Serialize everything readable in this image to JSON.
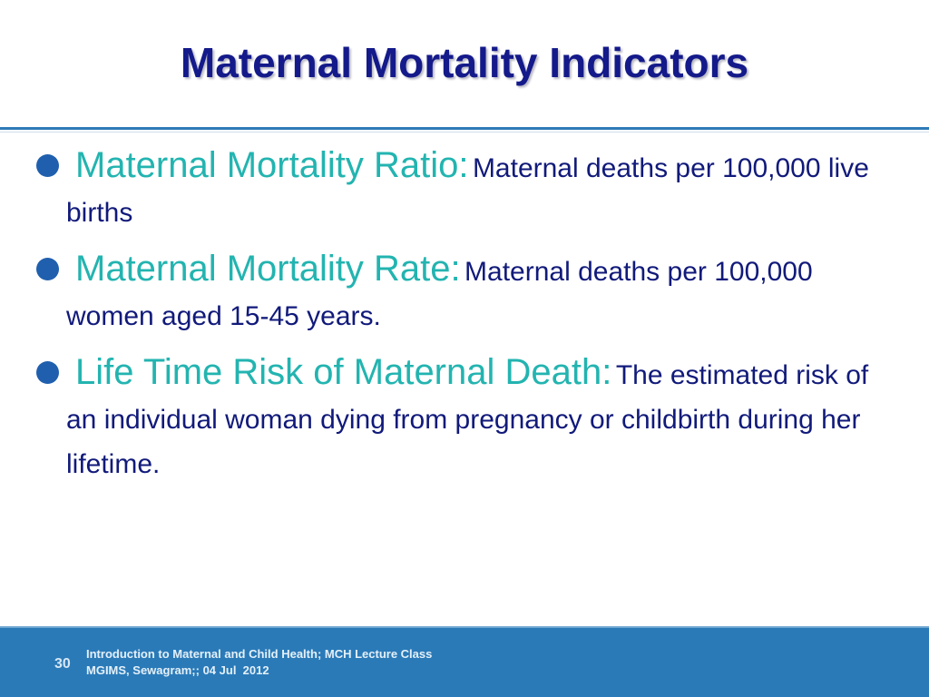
{
  "slide": {
    "title": "Maternal Mortality Indicators"
  },
  "bullets": [
    {
      "term": "Maternal Mortality Ratio:",
      "definition": "Maternal deaths per 100,000 live births"
    },
    {
      "term": "Maternal Mortality Rate:",
      "definition": "Maternal deaths per 100,000 women aged 15-45 years."
    },
    {
      "term": "Life Time Risk of Maternal Death:",
      "definition": "The estimated risk of an individual woman dying from pregnancy or childbirth during her lifetime."
    }
  ],
  "footer": {
    "page_number": "30",
    "line1": "Introduction to Maternal and Child Health; MCH Lecture Class",
    "line2": "MGIMS, Sewagram;; 04 Jul  2012"
  },
  "colors": {
    "title": "#141a8a",
    "term": "#23b4b0",
    "definition": "#111a7a",
    "bullet": "#1f5fae",
    "footer_bar": "#2a7ab8"
  }
}
